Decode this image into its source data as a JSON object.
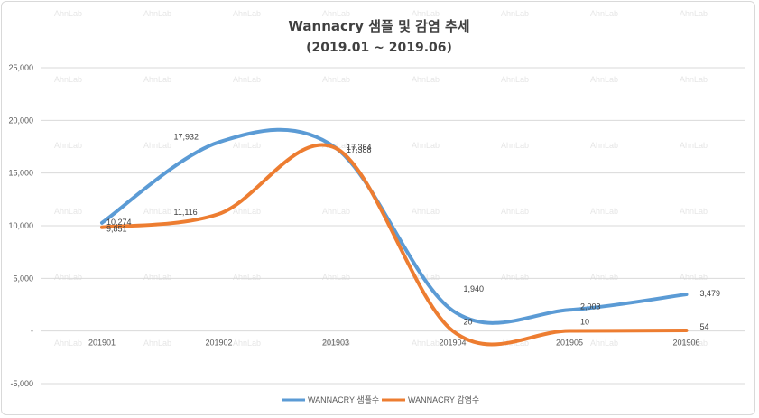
{
  "chart_data": {
    "type": "line",
    "title": "Wannacry 샘플 및 감염 추세",
    "subtitle": "(2019.01 ~ 2019.06)",
    "categories": [
      "201901",
      "201902",
      "201903",
      "201904",
      "201905",
      "201906"
    ],
    "ylim": [
      -5000,
      25000
    ],
    "yticks": [
      -5000,
      0,
      5000,
      10000,
      15000,
      20000,
      25000
    ],
    "ytick_labels": [
      "-5,000",
      "-",
      "5,000",
      "10,000",
      "15,000",
      "20,000",
      "25,000"
    ],
    "grid": true,
    "smooth": true,
    "legend_position": "bottom",
    "series": [
      {
        "name": "WANNACRY 샘플수",
        "color": "#5b9bd5",
        "values": [
          10274,
          17932,
          17388,
          1940,
          2003,
          3479
        ],
        "labels": [
          "10,274",
          "17,932",
          "17,388",
          "1,940",
          "2,003",
          "3,479"
        ]
      },
      {
        "name": "WANNACRY 감염수",
        "color": "#ed7d31",
        "values": [
          9851,
          11116,
          17364,
          20,
          10,
          54
        ],
        "labels": [
          "9,851",
          "11,116",
          "17,364",
          "20",
          "10",
          "54"
        ]
      }
    ],
    "watermark": "AhnLab"
  }
}
